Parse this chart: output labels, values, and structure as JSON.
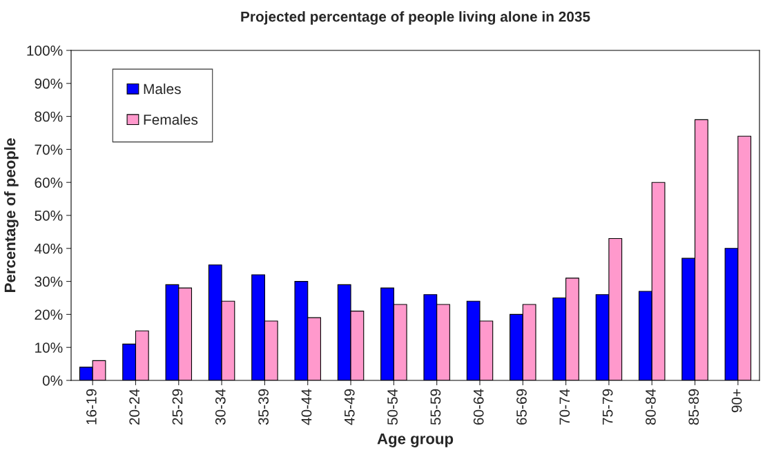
{
  "chart_data": {
    "type": "bar",
    "title": "Projected percentage of people living alone in 2035",
    "xlabel": "Age group",
    "ylabel": "Percentage of people",
    "categories": [
      "16-19",
      "20-24",
      "25-29",
      "30-34",
      "35-39",
      "40-44",
      "45-49",
      "50-54",
      "55-59",
      "60-64",
      "65-69",
      "70-74",
      "75-79",
      "80-84",
      "85-89",
      "90+"
    ],
    "series": [
      {
        "name": "Males",
        "color": "#0000ff",
        "values": [
          4,
          11,
          29,
          35,
          32,
          30,
          29,
          28,
          26,
          24,
          20,
          25,
          26,
          27,
          37,
          40
        ]
      },
      {
        "name": "Females",
        "color": "#ff99cc",
        "values": [
          6,
          15,
          28,
          24,
          18,
          19,
          21,
          23,
          23,
          18,
          23,
          31,
          43,
          60,
          79,
          74
        ]
      }
    ],
    "ylim": [
      0,
      100
    ],
    "yticks": [
      {
        "value": 0,
        "label": "0%"
      },
      {
        "value": 10,
        "label": "10%"
      },
      {
        "value": 20,
        "label": "20%"
      },
      {
        "value": 30,
        "label": "30%"
      },
      {
        "value": 40,
        "label": "40%"
      },
      {
        "value": 50,
        "label": "50%"
      },
      {
        "value": 60,
        "label": "60%"
      },
      {
        "value": 70,
        "label": "70%"
      },
      {
        "value": 80,
        "label": "80%"
      },
      {
        "value": 90,
        "label": "90%"
      },
      {
        "value": 100,
        "label": "100%"
      }
    ],
    "grid": false,
    "legend": "top left"
  }
}
